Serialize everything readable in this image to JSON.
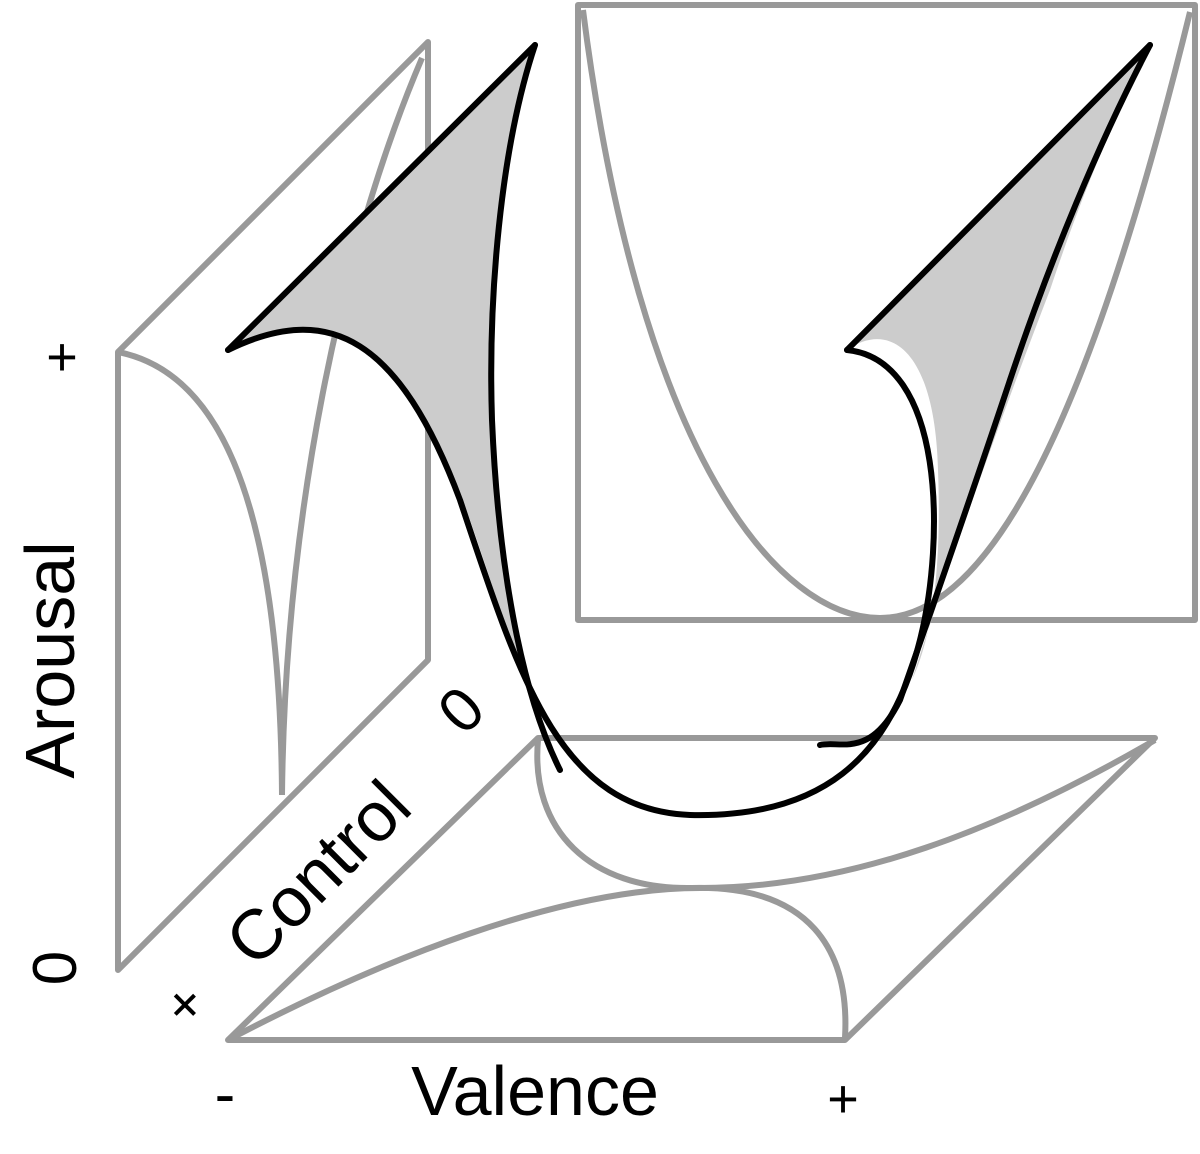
{
  "axes": {
    "arousal": {
      "label": "Arousal",
      "min_label": "0",
      "max_label": "+"
    },
    "control": {
      "label": "Control",
      "min_label": "+",
      "max_label": "0"
    },
    "valence": {
      "label": "Valence",
      "min_label": "-",
      "max_label": "+"
    }
  },
  "colors": {
    "projection_stroke": "#999999",
    "surface_stroke": "#000000",
    "surface_fill": "#cccccc",
    "background": "#ffffff"
  }
}
